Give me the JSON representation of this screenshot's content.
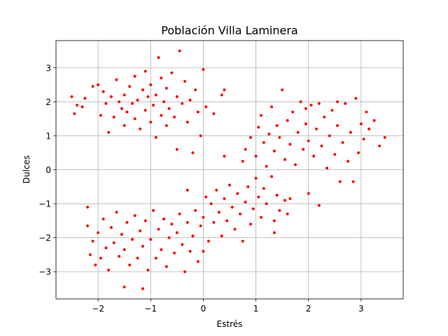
{
  "chart_data": {
    "type": "scatter",
    "title": "Población Villa Laminera",
    "xlabel": "Estrés",
    "ylabel": "Dulces",
    "xlim": [
      -2.8,
      3.8
    ],
    "ylim": [
      -3.8,
      3.8
    ],
    "xticks": [
      -2,
      -1,
      0,
      1,
      2,
      3
    ],
    "yticks": [
      -3,
      -2,
      -1,
      0,
      1,
      2,
      3
    ],
    "grid": true,
    "marker_color": "#ff0000",
    "series": [
      {
        "points": [
          [
            -2.5,
            2.15
          ],
          [
            -2.45,
            1.65
          ],
          [
            -2.4,
            1.9
          ],
          [
            -2.3,
            1.85
          ],
          [
            -2.25,
            2.1
          ],
          [
            -2.1,
            2.45
          ],
          [
            -2.0,
            2.5
          ],
          [
            -1.9,
            2.3
          ],
          [
            -1.95,
            1.6
          ],
          [
            -1.85,
            1.95
          ],
          [
            -1.8,
            1.1
          ],
          [
            -1.75,
            2.15
          ],
          [
            -1.7,
            1.55
          ],
          [
            -1.65,
            2.65
          ],
          [
            -1.6,
            2.0
          ],
          [
            -1.55,
            1.8
          ],
          [
            -1.5,
            1.3
          ],
          [
            -1.5,
            2.2
          ],
          [
            -1.45,
            1.7
          ],
          [
            -1.4,
            2.45
          ],
          [
            -1.35,
            1.95
          ],
          [
            -1.3,
            2.75
          ],
          [
            -1.3,
            1.5
          ],
          [
            -1.25,
            2.05
          ],
          [
            -1.2,
            1.2
          ],
          [
            -1.15,
            2.35
          ],
          [
            -1.1,
            1.75
          ],
          [
            -1.1,
            2.9
          ],
          [
            -1.05,
            2.15
          ],
          [
            -1.0,
            1.4
          ],
          [
            -1.0,
            2.5
          ],
          [
            -0.95,
            1.9
          ],
          [
            -0.9,
            0.95
          ],
          [
            -0.9,
            2.2
          ],
          [
            -0.85,
            3.3
          ],
          [
            -0.8,
            1.6
          ],
          [
            -0.8,
            2.7
          ],
          [
            -0.75,
            2.0
          ],
          [
            -0.7,
            1.3
          ],
          [
            -0.7,
            2.4
          ],
          [
            -0.65,
            1.8
          ],
          [
            -0.6,
            2.85
          ],
          [
            -0.55,
            1.55
          ],
          [
            -0.5,
            2.15
          ],
          [
            -0.5,
            0.6
          ],
          [
            -0.45,
            3.5
          ],
          [
            -0.4,
            1.95
          ],
          [
            -0.35,
            2.6
          ],
          [
            -0.3,
            1.4
          ],
          [
            -0.25,
            2.05
          ],
          [
            -0.2,
            0.5
          ],
          [
            -0.15,
            2.35
          ],
          [
            -0.1,
            1.7
          ],
          [
            -0.05,
            1.0
          ],
          [
            0.0,
            2.95
          ],
          [
            0.05,
            1.85
          ],
          [
            0.2,
            1.65
          ],
          [
            0.35,
            2.2
          ],
          [
            0.4,
            2.35
          ],
          [
            -2.2,
            -1.1
          ],
          [
            -2.2,
            -1.65
          ],
          [
            -2.15,
            -2.5
          ],
          [
            -2.1,
            -2.1
          ],
          [
            -2.05,
            -2.8
          ],
          [
            -2.0,
            -1.85
          ],
          [
            -1.95,
            -2.6
          ],
          [
            -1.9,
            -1.45
          ],
          [
            -1.85,
            -2.3
          ],
          [
            -1.8,
            -2.95
          ],
          [
            -1.75,
            -1.7
          ],
          [
            -1.7,
            -2.15
          ],
          [
            -1.65,
            -1.25
          ],
          [
            -1.6,
            -2.55
          ],
          [
            -1.55,
            -1.9
          ],
          [
            -1.5,
            -3.45
          ],
          [
            -1.5,
            -2.35
          ],
          [
            -1.45,
            -1.55
          ],
          [
            -1.4,
            -2.8
          ],
          [
            -1.35,
            -2.05
          ],
          [
            -1.3,
            -1.35
          ],
          [
            -1.25,
            -2.6
          ],
          [
            -1.2,
            -1.8
          ],
          [
            -1.15,
            -3.5
          ],
          [
            -1.15,
            -2.25
          ],
          [
            -1.1,
            -1.5
          ],
          [
            -1.05,
            -2.95
          ],
          [
            -1.0,
            -2.05
          ],
          [
            -0.95,
            -1.2
          ],
          [
            -0.9,
            -2.6
          ],
          [
            -0.85,
            -1.75
          ],
          [
            -0.8,
            -2.35
          ],
          [
            -0.75,
            -1.45
          ],
          [
            -0.7,
            -2.85
          ],
          [
            -0.65,
            -2.0
          ],
          [
            -0.6,
            -1.6
          ],
          [
            -0.55,
            -2.45
          ],
          [
            -0.5,
            -1.85
          ],
          [
            -0.45,
            -1.3
          ],
          [
            -0.4,
            -2.2
          ],
          [
            -0.35,
            -3.0
          ],
          [
            -0.3,
            -1.55
          ],
          [
            -0.25,
            -2.4
          ],
          [
            -0.2,
            -1.95
          ],
          [
            -0.15,
            -1.2
          ],
          [
            -0.1,
            -2.7
          ],
          [
            -0.05,
            -1.65
          ],
          [
            0.0,
            -1.4
          ],
          [
            0.0,
            -2.4
          ],
          [
            0.05,
            -0.8
          ],
          [
            0.1,
            -2.1
          ],
          [
            0.15,
            -1.0
          ],
          [
            0.2,
            -1.55
          ],
          [
            0.25,
            -0.6
          ],
          [
            0.3,
            -1.25
          ],
          [
            0.35,
            -1.95
          ],
          [
            0.4,
            -0.85
          ],
          [
            0.45,
            -1.5
          ],
          [
            0.5,
            -0.45
          ],
          [
            0.55,
            -1.1
          ],
          [
            0.6,
            -1.75
          ],
          [
            0.65,
            -0.7
          ],
          [
            0.7,
            -1.3
          ],
          [
            0.75,
            -2.1
          ],
          [
            0.8,
            -0.95
          ],
          [
            0.85,
            -0.5
          ],
          [
            0.9,
            -1.6
          ],
          [
            0.95,
            -1.15
          ],
          [
            1.0,
            -0.25
          ],
          [
            1.05,
            -0.8
          ],
          [
            1.1,
            -1.4
          ],
          [
            1.15,
            -0.55
          ],
          [
            1.2,
            -1.0
          ],
          [
            1.3,
            -0.2
          ],
          [
            1.35,
            -1.5
          ],
          [
            1.4,
            -0.75
          ],
          [
            1.45,
            -1.2
          ],
          [
            1.55,
            -0.9
          ],
          [
            1.6,
            -1.3
          ],
          [
            1.65,
            -0.85
          ],
          [
            1.35,
            -1.85
          ],
          [
            0.4,
            0.4
          ],
          [
            -0.3,
            -0.6
          ],
          [
            0.75,
            0.25
          ],
          [
            0.8,
            0.6
          ],
          [
            0.9,
            0.95
          ],
          [
            1.0,
            0.4
          ],
          [
            1.05,
            1.25
          ],
          [
            1.1,
            1.6
          ],
          [
            1.15,
            0.8
          ],
          [
            1.2,
            0.1
          ],
          [
            1.25,
            1.05
          ],
          [
            1.3,
            1.85
          ],
          [
            1.35,
            0.55
          ],
          [
            1.4,
            1.3
          ],
          [
            1.45,
            0.95
          ],
          [
            1.5,
            2.35
          ],
          [
            1.55,
            0.3
          ],
          [
            1.6,
            1.45
          ],
          [
            1.65,
            0.75
          ],
          [
            1.7,
            1.7
          ],
          [
            1.75,
            0.15
          ],
          [
            1.8,
            1.1
          ],
          [
            1.85,
            2.0
          ],
          [
            1.9,
            0.6
          ],
          [
            1.95,
            1.35
          ],
          [
            2.0,
            -0.7
          ],
          [
            2.0,
            0.85
          ],
          [
            2.05,
            1.9
          ],
          [
            2.1,
            0.4
          ],
          [
            2.15,
            1.2
          ],
          [
            2.2,
            -1.05
          ],
          [
            2.25,
            0.7
          ],
          [
            2.3,
            1.55
          ],
          [
            2.35,
            0.05
          ],
          [
            2.4,
            1.0
          ],
          [
            2.45,
            1.75
          ],
          [
            2.5,
            0.45
          ],
          [
            2.55,
            1.3
          ],
          [
            2.6,
            -0.35
          ],
          [
            2.65,
            0.8
          ],
          [
            2.7,
            1.95
          ],
          [
            2.75,
            0.25
          ],
          [
            2.8,
            1.1
          ],
          [
            2.85,
            -0.35
          ],
          [
            2.9,
            2.1
          ],
          [
            2.95,
            0.5
          ],
          [
            3.0,
            1.35
          ],
          [
            3.05,
            0.9
          ],
          [
            3.1,
            1.7
          ],
          [
            3.15,
            1.2
          ],
          [
            3.25,
            1.45
          ],
          [
            3.35,
            0.7
          ],
          [
            3.45,
            0.95
          ],
          [
            2.55,
            2.0
          ],
          [
            1.95,
            1.8
          ],
          [
            2.2,
            1.95
          ]
        ]
      }
    ]
  }
}
